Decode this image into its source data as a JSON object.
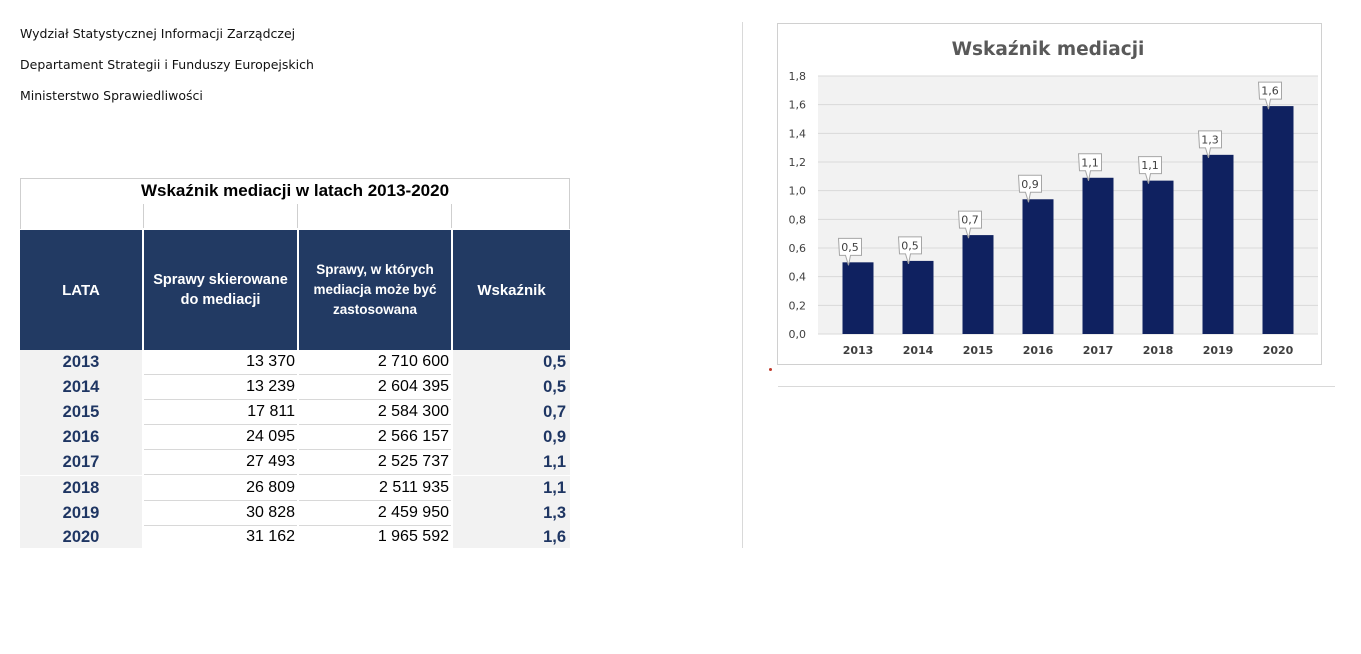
{
  "header": {
    "line1": "Wydział Statystycznej Informacji Zarządczej",
    "line2": "Departament Strategii i Funduszy Europejskich",
    "line3": "Ministerstwo Sprawiedliwości"
  },
  "table": {
    "title": "Wskaźnik mediacji w latach  2013-2020",
    "columns": {
      "year": "LATA",
      "referred_l1": "Sprawy skierowane",
      "referred_l2": "do mediacji",
      "eligible_l1": "Sprawy, w których",
      "eligible_l2": "mediacja może być",
      "eligible_l3": "zastosowana",
      "index": "Wskaźnik"
    },
    "rows": [
      {
        "year": "2013",
        "referred": "13 370",
        "eligible": "2 710 600",
        "index": "0,5"
      },
      {
        "year": "2014",
        "referred": "13 239",
        "eligible": "2 604 395",
        "index": "0,5"
      },
      {
        "year": "2015",
        "referred": "17 811",
        "eligible": "2 584 300",
        "index": "0,7"
      },
      {
        "year": "2016",
        "referred": "24 095",
        "eligible": "2 566 157",
        "index": "0,9"
      },
      {
        "year": "2017",
        "referred": "27 493",
        "eligible": "2 525 737",
        "index": "1,1"
      },
      {
        "year": "2018",
        "referred": "26 809",
        "eligible": "2 511 935",
        "index": "1,1"
      },
      {
        "year": "2019",
        "referred": "30 828",
        "eligible": "2 459 950",
        "index": "1,3"
      },
      {
        "year": "2020",
        "referred": "31 162",
        "eligible": "1 965 592",
        "index": "1,6"
      }
    ]
  },
  "chart_data": {
    "type": "bar",
    "title": "Wskaźnik mediacji",
    "categories": [
      "2013",
      "2014",
      "2015",
      "2016",
      "2017",
      "2018",
      "2019",
      "2020"
    ],
    "values": [
      0.5,
      0.51,
      0.69,
      0.94,
      1.09,
      1.07,
      1.25,
      1.59
    ],
    "labels": [
      "0,5",
      "0,5",
      "0,7",
      "0,9",
      "1,1",
      "1,1",
      "1,3",
      "1,6"
    ],
    "yticks": [
      "0,0",
      "0,2",
      "0,4",
      "0,6",
      "0,8",
      "1,0",
      "1,2",
      "1,4",
      "1,6",
      "1,8"
    ],
    "ylim": [
      0,
      1.8
    ],
    "xlabel": "",
    "ylabel": "",
    "grid": true,
    "bar_color": "#0f2160",
    "plot_bg": "#f2f2f2"
  }
}
